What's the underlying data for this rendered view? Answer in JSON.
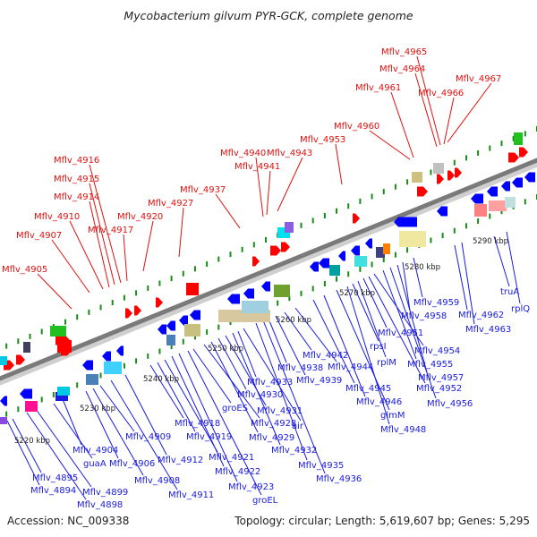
{
  "title": "Mycobacterium gilvum PYR-GCK, complete genome",
  "accession": "Accession: NC_009338",
  "summary": "Topology: circular; Length: 5,619,607 bp; Genes: 5,295",
  "colors": {
    "forward_label": "#e01010",
    "reverse_label": "#1a1ae0",
    "backbone": "#808080",
    "arrow_red": "#ff0000",
    "arrow_blue": "#0000ff"
  },
  "ticks": [
    "5220 kbp",
    "5230 kbp",
    "5240 kbp",
    "5250 kbp",
    "5260 kbp",
    "5270 kbp",
    "5280 kbp",
    "5290 kbp"
  ],
  "forward_labels": [
    "Mflv_4905",
    "Mflv_4907",
    "Mflv_4910",
    "Mflv_4914",
    "Mflv_4915",
    "Mflv_4916",
    "Mflv_4917",
    "Mflv_4920",
    "Mflv_4927",
    "Mflv_4937",
    "Mflv_4940",
    "Mflv_4941",
    "Mflv_4943",
    "Mflv_4953",
    "Mflv_4960",
    "Mflv_4961",
    "Mflv_4964",
    "Mflv_4965",
    "Mflv_4966",
    "Mflv_4967"
  ],
  "reverse_labels": [
    "Mflv_4894",
    "Mflv_4895",
    "Mflv_4898",
    "Mflv_4899",
    "guaA",
    "Mflv_4904",
    "Mflv_4906",
    "Mflv_4908",
    "Mflv_4909",
    "Mflv_4911",
    "Mflv_4912",
    "Mflv_4918",
    "Mflv_4919",
    "Mflv_4921",
    "Mflv_4922",
    "Mflv_4923",
    "groEL",
    "groES",
    "Mflv_4928",
    "Mflv_4929",
    "Mflv_4930",
    "Mflv_4931",
    "Mflv_4932",
    "Mflv_4933",
    "air",
    "Mflv_4935",
    "Mflv_4936",
    "Mflv_4938",
    "Mflv_4939",
    "Mflv_4942",
    "Mflv_4944",
    "Mflv_4945",
    "Mflv_4946",
    "glmM",
    "Mflv_4948",
    "rpsI",
    "rplM",
    "Mflv_4951",
    "Mflv_4952",
    "Mflv_4954",
    "Mflv_4955",
    "Mflv_4956",
    "Mflv_4957",
    "Mflv_4958",
    "Mflv_4959",
    "Mflv_4962",
    "Mflv_4963",
    "truA",
    "rplQ"
  ]
}
